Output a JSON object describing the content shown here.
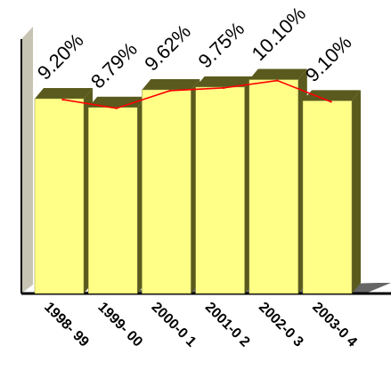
{
  "chart_data": {
    "type": "bar",
    "categories": [
      "1998- 99",
      "1999- 00",
      "2000-0 1",
      "2001-0 2",
      "2002-0 3",
      "2003-0 4"
    ],
    "values": [
      9.2,
      8.79,
      9.62,
      9.75,
      10.1,
      9.1
    ],
    "data_labels": [
      "9.20%",
      "8.79%",
      "9.62%",
      "9.75%",
      "10.10%",
      "9.10%"
    ],
    "overlay_line": {
      "type": "line",
      "values": [
        9.2,
        8.79,
        9.62,
        9.75,
        10.1,
        9.1
      ]
    },
    "title": "",
    "xlabel": "",
    "ylabel": "",
    "ylim": [
      0,
      12.6
    ],
    "grid": false,
    "legend": "none",
    "colors": {
      "bar_face": "#ffff88",
      "bar_side": "#5a5a1e",
      "line": "#ff0000",
      "wall": "#c8c4b4",
      "floor": "#666666",
      "axis": "#000000"
    }
  }
}
